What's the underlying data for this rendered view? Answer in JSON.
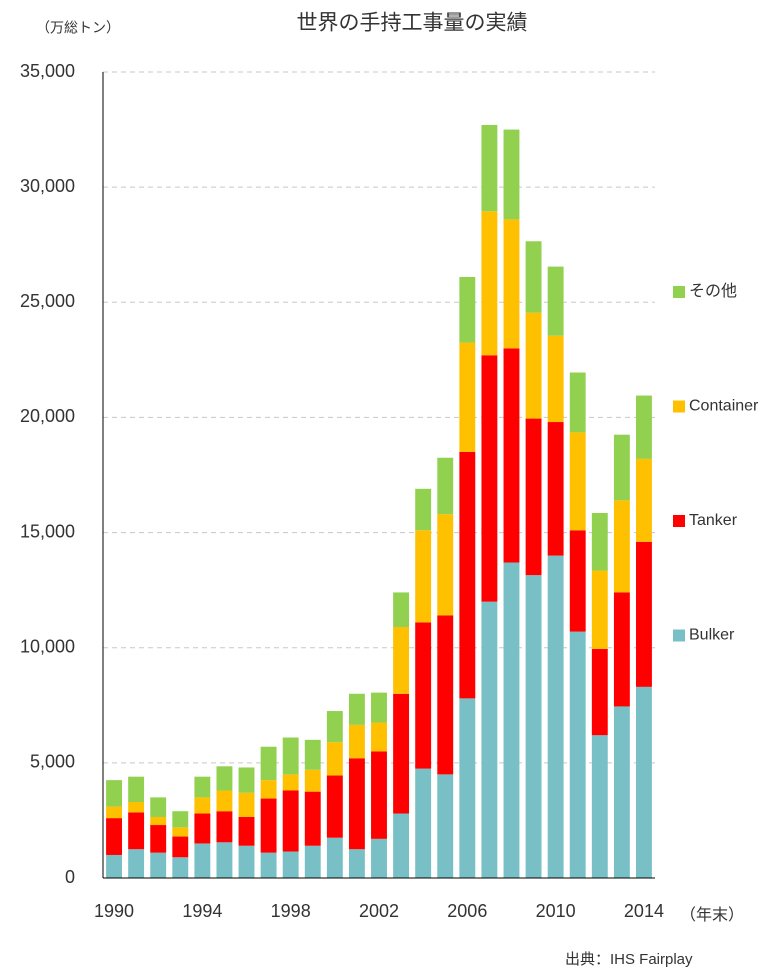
{
  "chart_data": {
    "type": "bar",
    "stacked": true,
    "title": "世界の手持工事量の実績",
    "y_axis_label": "（万総トン）",
    "x_axis_label": "（年末）",
    "source": "出典：IHS Fairplay",
    "categories": [
      "1990",
      null,
      null,
      null,
      "1994",
      null,
      null,
      null,
      "1998",
      null,
      null,
      null,
      "2002",
      null,
      null,
      null,
      "2006",
      null,
      null,
      null,
      "2010",
      null,
      null,
      null,
      "2014"
    ],
    "series": [
      {
        "name": "Bulker",
        "color": "#78c0c6",
        "values": [
          1000,
          1250,
          1100,
          900,
          1500,
          1550,
          1400,
          1100,
          1150,
          1400,
          1750,
          1250,
          1700,
          2800,
          4750,
          4500,
          7800,
          12000,
          13700,
          13150,
          14000,
          10700,
          6200,
          7450,
          8300
        ]
      },
      {
        "name": "Tanker",
        "color": "#ff0000",
        "values": [
          1600,
          1600,
          1200,
          900,
          1300,
          1350,
          1250,
          2350,
          2650,
          2350,
          2700,
          3950,
          3800,
          5200,
          6350,
          6900,
          10700,
          10700,
          9300,
          6800,
          5800,
          4400,
          3750,
          4950,
          6300
        ]
      },
      {
        "name": "Container",
        "color": "#ffc000",
        "values": [
          500,
          450,
          350,
          400,
          700,
          900,
          1050,
          800,
          700,
          950,
          1450,
          1450,
          1250,
          2900,
          4000,
          4400,
          4750,
          6250,
          5600,
          4600,
          3750,
          4250,
          3400,
          4000,
          3600
        ]
      },
      {
        "name": "その他",
        "color": "#92d050",
        "values": [
          1150,
          1100,
          850,
          700,
          900,
          1050,
          1100,
          1450,
          1600,
          1300,
          1350,
          1350,
          1300,
          1500,
          1800,
          2450,
          2850,
          3750,
          3900,
          3100,
          3000,
          2600,
          2500,
          2850,
          2750
        ]
      }
    ],
    "ylim": [
      0,
      35000
    ],
    "yticks": [
      0,
      {
        "value": 5000,
        "label": "5,000"
      },
      {
        "value": 10000,
        "label": "10,000"
      },
      {
        "value": 15000,
        "label": "15,000"
      },
      {
        "value": 20000,
        "label": "20,000"
      },
      {
        "value": 25000,
        "label": "25,000"
      },
      {
        "value": 30000,
        "label": "30,000"
      },
      {
        "value": 35000,
        "label": "35,000"
      }
    ],
    "grid": true,
    "legend": "right"
  }
}
